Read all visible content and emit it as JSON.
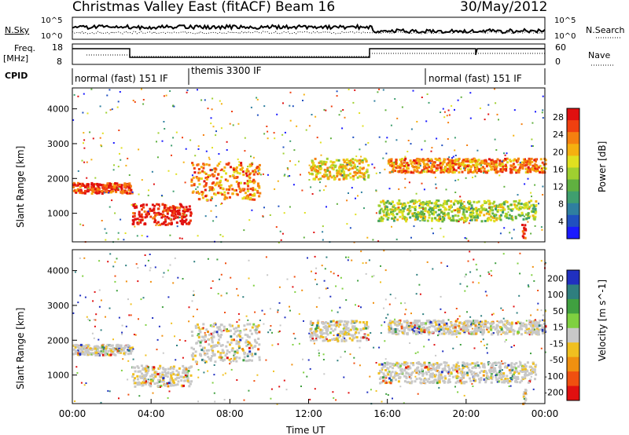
{
  "header": {
    "title": "Christmas Valley East (fitACF)",
    "beam": "Beam 16",
    "date": "30/May/2012"
  },
  "sky_panel": {
    "left_label": "N.Sky",
    "right_label": "N.Search",
    "y_ticks": [
      "10^5",
      "10^0"
    ]
  },
  "freq_panel": {
    "left_label_line1": "Freq.",
    "left_label_line2": "[MHz]",
    "right_label": "Nave",
    "left_ticks": [
      "18",
      "8"
    ],
    "right_ticks": [
      "60",
      "0"
    ]
  },
  "cpid": {
    "label": "CPID",
    "segments": [
      {
        "text": "normal (fast) 151 IF",
        "start": 0,
        "end": 6
      },
      {
        "text": "themis 3300 IF",
        "start": 6,
        "end": 18.3
      },
      {
        "text": "normal (fast) 151 IF",
        "start": 18.3,
        "end": 24
      }
    ]
  },
  "power_panel": {
    "ylabel": "Slant Range [km]",
    "y_ticks": [
      1000,
      2000,
      3000,
      4000
    ],
    "colorbar_label": "Power [dB]",
    "colorbar_ticks": [
      4,
      8,
      12,
      16,
      20,
      24,
      28
    ],
    "colors": [
      "#1a1aff",
      "#2050c0",
      "#2f7fa0",
      "#3f9f6f",
      "#60b040",
      "#9fd030",
      "#e0e020",
      "#f5b010",
      "#f58010",
      "#f04010",
      "#e01010"
    ]
  },
  "velocity_panel": {
    "ylabel": "Slant Range [km]",
    "y_ticks": [
      1000,
      2000,
      3000,
      4000
    ],
    "colorbar_label": "Velocity [m s^-1]",
    "colorbar_ticks": [
      200,
      100,
      50,
      15,
      -15,
      -50,
      -100,
      -200
    ],
    "colors": [
      "#2030c0",
      "#2f7f7f",
      "#40a040",
      "#7fd040",
      "#c8c8c8",
      "#f0c020",
      "#f09010",
      "#f05010",
      "#e01010"
    ]
  },
  "x_axis": {
    "label": "Time UT",
    "ticks": [
      "00:00",
      "04:00",
      "08:00",
      "12:00",
      "16:00",
      "20:00",
      "00:00"
    ]
  },
  "chart_data": {
    "type": "heatmap",
    "x_range_hours": [
      0,
      24
    ],
    "y_range_km": [
      180,
      4600
    ],
    "power_bands": [
      {
        "t_start": 0,
        "t_end": 3,
        "range_km": [
          1600,
          1900
        ],
        "power_db": 26
      },
      {
        "t_start": 3,
        "t_end": 6,
        "range_km": [
          700,
          1300
        ],
        "power_db": 28
      },
      {
        "t_start": 6,
        "t_end": 9.5,
        "range_km": [
          1400,
          2500
        ],
        "power_db": 22
      },
      {
        "t_start": 12,
        "t_end": 15,
        "range_km": [
          2000,
          2600
        ],
        "power_db": 18
      },
      {
        "t_start": 16,
        "t_end": 24,
        "range_km": [
          2200,
          2600
        ],
        "power_db": 22
      },
      {
        "t_start": 15.5,
        "t_end": 23.5,
        "range_km": [
          800,
          1400
        ],
        "power_db": 14
      },
      {
        "t_start": 22.8,
        "t_end": 23,
        "range_km": [
          200,
          700
        ],
        "power_db": 28
      }
    ],
    "velocity_note_values": [
      -15,
      15
    ]
  }
}
